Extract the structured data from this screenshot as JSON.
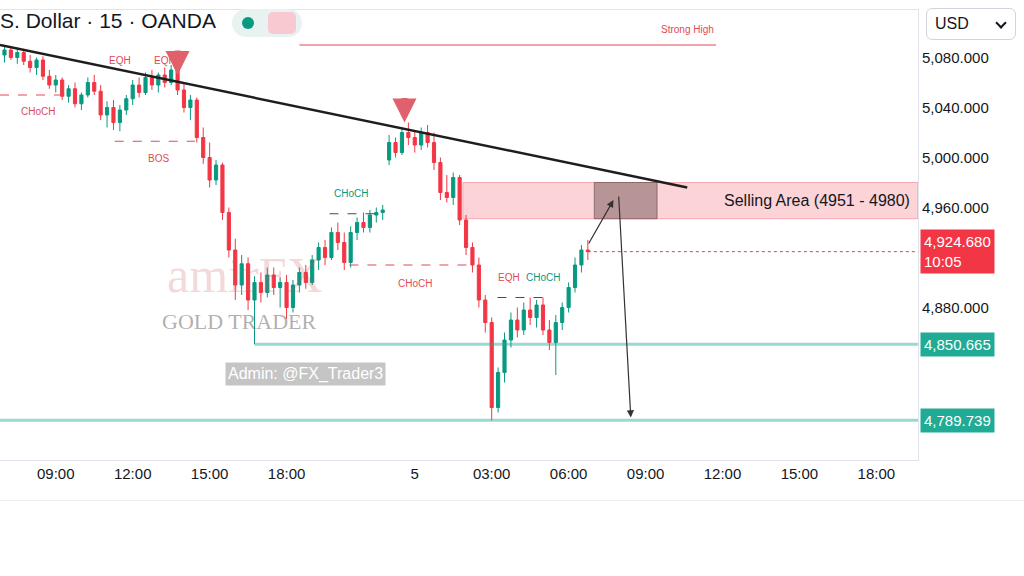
{
  "chart_data": {
    "type": "candlestick",
    "title": "S. Dollar · 15 · OANDA",
    "currency": "USD",
    "categories": [
      null,
      null,
      null,
      null,
      null,
      null,
      null,
      null,
      "09:00",
      null,
      null,
      null,
      null,
      null,
      null,
      null,
      null,
      null,
      null,
      null,
      "12:00",
      null,
      null,
      null,
      null,
      null,
      null,
      null,
      null,
      null,
      null,
      null,
      "15:00",
      null,
      null,
      null,
      null,
      null,
      null,
      null,
      null,
      null,
      null,
      null,
      "18:00",
      null,
      null,
      null,
      null,
      null,
      null,
      null,
      null,
      null,
      null,
      null,
      null,
      null,
      null,
      null,
      null,
      null,
      null,
      null,
      "5",
      null,
      null,
      null,
      null,
      null,
      null,
      null,
      null,
      null,
      null,
      null,
      "03:00",
      null,
      null,
      null,
      null,
      null,
      null,
      null,
      null,
      null,
      null,
      null,
      "06:00",
      null,
      null,
      null,
      null,
      null,
      null,
      null,
      null,
      null,
      null,
      null,
      "09:00",
      null,
      null,
      null,
      null,
      null,
      null,
      null,
      null,
      null,
      null,
      null,
      "12:00",
      null,
      null,
      null,
      null,
      null,
      null,
      null,
      null,
      null,
      null,
      null,
      "15:00",
      null,
      null,
      null,
      null,
      null,
      null,
      null,
      null,
      null,
      null,
      null,
      "18:00",
      null,
      null,
      null,
      null,
      null,
      null
    ],
    "open": [
      5082,
      5086,
      5080,
      5084,
      5077,
      5072,
      5078,
      5065,
      5058,
      5062,
      5049,
      5055,
      5043,
      5050,
      5060,
      5053,
      5034,
      5040,
      5028,
      5038,
      5047,
      5058,
      5052,
      5064,
      5058,
      5066,
      5060,
      5070,
      5054,
      5040,
      5046,
      5016,
      5000,
      4982,
      4994,
      4956,
      4926,
      4898,
      4915,
      4886,
      4900,
      4892,
      4906,
      4896,
      4900,
      4880,
      4898,
      4908,
      4900,
      4918,
      4928,
      4920,
      4940,
      4932,
      4916,
      4940,
      4948,
      4944,
      4954,
      4956,
      4998,
      5012,
      5004,
      5020,
      5016,
      5010,
      5020,
      5012,
      4996,
      4972,
      4968,
      4984,
      4950,
      4928,
      4914,
      4886,
      4868,
      4800,
      4828,
      4854,
      4870,
      4862,
      4878,
      4872,
      4882,
      4862,
      4852,
      4868,
      4880,
      4896,
      4914,
      4926,
      null,
      null,
      null,
      null,
      null,
      null,
      null,
      null,
      null,
      null,
      null,
      null,
      null,
      null,
      null,
      null,
      null,
      null,
      null,
      null,
      null,
      null,
      null,
      null,
      null,
      null,
      null,
      null,
      null,
      null,
      null,
      null,
      null,
      null,
      null,
      null,
      null,
      null,
      null,
      null,
      null,
      null,
      null,
      null,
      null,
      null,
      null,
      null,
      null,
      null,
      null
    ],
    "high": [
      5090,
      5089,
      5088,
      5087,
      5082,
      5080,
      5081,
      5070,
      5066,
      5064,
      5058,
      5060,
      5052,
      5064,
      5066,
      5058,
      5045,
      5046,
      5042,
      5050,
      5062,
      5064,
      5068,
      5070,
      5068,
      5072,
      5074,
      5076,
      5060,
      5050,
      5048,
      5024,
      5012,
      4998,
      4996,
      4960,
      4935,
      4922,
      4920,
      4905,
      4908,
      4912,
      4912,
      4904,
      4906,
      4902,
      4912,
      4914,
      4922,
      4932,
      4934,
      4944,
      4948,
      4940,
      4945,
      4952,
      4956,
      4958,
      4960,
      4962,
      5018,
      5016,
      5024,
      5028,
      5022,
      5024,
      5026,
      5020,
      5000,
      4986,
      4988,
      4986,
      4954,
      4932,
      4920,
      4890,
      4872,
      4832,
      4860,
      4876,
      4880,
      4884,
      4888,
      4886,
      4888,
      4870,
      4874,
      4884,
      4900,
      4920,
      4930,
      4934,
      null,
      null,
      null,
      null,
      null,
      null,
      null,
      null,
      null,
      null,
      null,
      null,
      null,
      null,
      null,
      null,
      null,
      null,
      null,
      null,
      null,
      null,
      null,
      null,
      null,
      null,
      null,
      null,
      null,
      null,
      null,
      null,
      null,
      null,
      null,
      null,
      null,
      null,
      null,
      null,
      null,
      null,
      null,
      null,
      null,
      null,
      null,
      null,
      null,
      null,
      null
    ],
    "low": [
      5076,
      5078,
      5075,
      5074,
      5068,
      5066,
      5062,
      5055,
      5052,
      5046,
      5044,
      5040,
      5038,
      5048,
      5050,
      5030,
      5024,
      5022,
      5021,
      5034,
      5042,
      5048,
      5050,
      5054,
      5052,
      5056,
      5058,
      5050,
      5036,
      5030,
      5012,
      4995,
      4976,
      4978,
      4950,
      4920,
      4886,
      4890,
      4878,
      4850.665,
      4884,
      4888,
      4890,
      4880,
      4871,
      4876,
      4892,
      4895,
      4898,
      4910,
      4914,
      4918,
      4926,
      4910,
      4912,
      4934,
      4940,
      4940,
      4948,
      4950,
      4994,
      5000,
      5002,
      5010,
      5004,
      5006,
      5008,
      4990,
      4966,
      4964,
      4962,
      4946,
      4922,
      4908,
      4880,
      4860,
      4789.739,
      4796,
      4820,
      4848,
      4856,
      4858,
      4866,
      4864,
      4858,
      4846,
      4826,
      4862,
      4876,
      4892,
      4908,
      4918,
      null,
      null,
      null,
      null,
      null,
      null,
      null,
      null,
      null,
      null,
      null,
      null,
      null,
      null,
      null,
      null,
      null,
      null,
      null,
      null,
      null,
      null,
      null,
      null,
      null,
      null,
      null,
      null,
      null,
      null,
      null,
      null,
      null,
      null,
      null,
      null,
      null,
      null,
      null,
      null,
      null,
      null,
      null,
      null,
      null,
      null,
      null,
      null,
      null,
      null,
      null
    ],
    "close": [
      5086,
      5080,
      5084,
      5077,
      5072,
      5078,
      5065,
      5058,
      5062,
      5049,
      5055,
      5043,
      5050,
      5060,
      5053,
      5034,
      5040,
      5028,
      5038,
      5047,
      5058,
      5052,
      5064,
      5058,
      5066,
      5060,
      5070,
      5054,
      5040,
      5046,
      5016,
      5000,
      4982,
      4994,
      4956,
      4926,
      4898,
      4915,
      4886,
      4900,
      4892,
      4906,
      4896,
      4900,
      4880,
      4898,
      4908,
      4900,
      4918,
      4928,
      4920,
      4940,
      4932,
      4916,
      4940,
      4948,
      4944,
      4954,
      4956,
      4958,
      5012,
      5004,
      5020,
      5016,
      5010,
      5020,
      5012,
      4996,
      4972,
      4968,
      4984,
      4950,
      4928,
      4914,
      4886,
      4868,
      4800,
      4828,
      4854,
      4870,
      4862,
      4878,
      4872,
      4882,
      4862,
      4852,
      4868,
      4880,
      4896,
      4914,
      4926,
      4924.68,
      null,
      null,
      null,
      null,
      null,
      null,
      null,
      null,
      null,
      null,
      null,
      null,
      null,
      null,
      null,
      null,
      null,
      null,
      null,
      null,
      null,
      null,
      null,
      null,
      null,
      null,
      null,
      null,
      null,
      null,
      null,
      null,
      null,
      null,
      null,
      null,
      null,
      null,
      null,
      null,
      null,
      null,
      null,
      null,
      null,
      null,
      null,
      null,
      null,
      null,
      null
    ],
    "color": {
      "up": "#089981",
      "down": "#f23645"
    },
    "xlim": [
      -0.7,
      142.5
    ],
    "ylim": [
      4758,
      5118
    ],
    "yticks": [
      {
        "value": 4880,
        "label": "4,880.000"
      },
      {
        "value": 4960,
        "label": "4,960.000"
      },
      {
        "value": 5000,
        "label": "5,000.000"
      },
      {
        "value": 5040,
        "label": "5,040.000"
      },
      {
        "value": 5080,
        "label": "5,080.000"
      }
    ],
    "grid": false,
    "trendline": {
      "x0": -0.7,
      "y0": 5090,
      "x1": 106.5,
      "y1": 4976,
      "color": "#1e1e1e"
    },
    "strong_high": {
      "label": "Strong High",
      "value": 5090,
      "x0": 46,
      "x1": 111,
      "color": "#e04a57"
    },
    "structure_lines": [
      {
        "x0": -0.7,
        "x1": 9.5,
        "y": 5050,
        "color": "#e04a57"
      },
      {
        "x0": 17.2,
        "x1": 29.7,
        "y": 5013,
        "color": "#e04a57"
      },
      {
        "x0": 50.7,
        "x1": 58.5,
        "y": 4955,
        "color": "#4a4a4a"
      },
      {
        "x0": 53.8,
        "x1": 72.5,
        "y": 4914,
        "color": "#e04a57"
      },
      {
        "x0": 76.9,
        "x1": 84.6,
        "y": 4888,
        "color": "#4a4a4a"
      }
    ],
    "structure_labels": [
      {
        "text": "CHoCH",
        "x": 5.2,
        "y": 5037,
        "color": "#e04a57"
      },
      {
        "text": "EQH",
        "x": 18,
        "y": 5078,
        "color": "#e04a57"
      },
      {
        "text": "EQH",
        "x": 25,
        "y": 5078,
        "color": "#e04a57"
      },
      {
        "text": "BOS",
        "x": 24,
        "y": 4999,
        "color": "#e04a57"
      },
      {
        "text": "CHoCH",
        "x": 54,
        "y": 4971,
        "color": "#089981"
      },
      {
        "text": "CHoCH",
        "x": 64,
        "y": 4899,
        "color": "#e04a57"
      },
      {
        "text": "EQH",
        "x": 78.7,
        "y": 4904,
        "color": "#e04a57"
      },
      {
        "text": "CHoCH",
        "x": 84,
        "y": 4904,
        "color": "#089981"
      }
    ],
    "signal_arrows": [
      {
        "x": 27,
        "y": 5066,
        "color": "#e0606b"
      },
      {
        "x": 62.4,
        "y": 5028,
        "color": "#e0606b"
      }
    ],
    "selling_area": {
      "label": "Selling Area (4951 - 4980)",
      "low": 4951,
      "high": 4980,
      "x0": 71.5,
      "x1": 142.5,
      "target_x0": 92,
      "target_x1": 101.8
    },
    "projection": [
      {
        "x0": 91,
        "y0": 4930,
        "x1": 95,
        "y1": 4966
      },
      {
        "x0": 95.8,
        "y0": 4970,
        "x1": 97.7,
        "y1": 4792
      }
    ],
    "levels": [
      {
        "value": 4850.665,
        "label": "4,850.665",
        "x0": 39,
        "color": "#22ab94"
      },
      {
        "value": 4789.739,
        "label": "4,789.739",
        "x0": -0.7,
        "color": "#22ab94"
      }
    ],
    "last_price": {
      "value": 4924.68,
      "label": "4,924.680",
      "timer": "10:05",
      "x0": 91,
      "color": "#f23645"
    },
    "watermark": [
      "amirFX",
      "GOLD TRADER",
      "Admin: @FX_Trader3"
    ]
  }
}
